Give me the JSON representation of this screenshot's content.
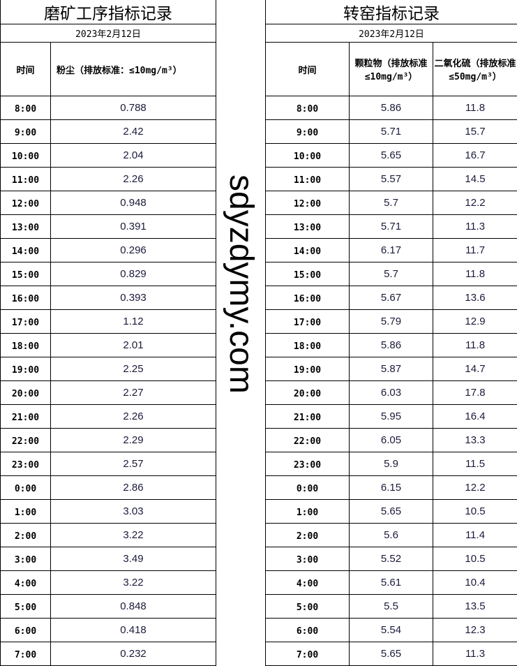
{
  "left": {
    "title": "磨矿工序指标记录",
    "date": "2023年2月12日",
    "col_time": "时间",
    "col_dust": "粉尘（排放标准：≤10mg/m³）",
    "rows": [
      [
        "8:00",
        "0.788"
      ],
      [
        "9:00",
        "2.42"
      ],
      [
        "10:00",
        "2.04"
      ],
      [
        "11:00",
        "2.26"
      ],
      [
        "12:00",
        "0.948"
      ],
      [
        "13:00",
        "0.391"
      ],
      [
        "14:00",
        "0.296"
      ],
      [
        "15:00",
        "0.829"
      ],
      [
        "16:00",
        "0.393"
      ],
      [
        "17:00",
        "1.12"
      ],
      [
        "18:00",
        "2.01"
      ],
      [
        "19:00",
        "2.25"
      ],
      [
        "20:00",
        "2.27"
      ],
      [
        "21:00",
        "2.26"
      ],
      [
        "22:00",
        "2.29"
      ],
      [
        "23:00",
        "2.57"
      ],
      [
        "0:00",
        "2.86"
      ],
      [
        "1:00",
        "3.03"
      ],
      [
        "2:00",
        "3.22"
      ],
      [
        "3:00",
        "3.49"
      ],
      [
        "4:00",
        "3.22"
      ],
      [
        "5:00",
        "0.848"
      ],
      [
        "6:00",
        "0.418"
      ],
      [
        "7:00",
        "0.232"
      ]
    ]
  },
  "right": {
    "title": "转窑指标记录",
    "date": "2023年2月12日",
    "col_time": "时间",
    "col_particles": "颗粒物（排放标准≤10mg/m³）",
    "col_so2": "二氧化硫（排放标准≤50mg/m³）",
    "rows": [
      [
        "8:00",
        "5.86",
        "11.8"
      ],
      [
        "9:00",
        "5.71",
        "15.7"
      ],
      [
        "10:00",
        "5.65",
        "16.7"
      ],
      [
        "11:00",
        "5.57",
        "14.5"
      ],
      [
        "12:00",
        "5.7",
        "12.2"
      ],
      [
        "13:00",
        "5.71",
        "11.3"
      ],
      [
        "14:00",
        "6.17",
        "11.7"
      ],
      [
        "15:00",
        "5.7",
        "11.8"
      ],
      [
        "16:00",
        "5.67",
        "13.6"
      ],
      [
        "17:00",
        "5.79",
        "12.9"
      ],
      [
        "18:00",
        "5.86",
        "11.8"
      ],
      [
        "19:00",
        "5.87",
        "14.7"
      ],
      [
        "20:00",
        "6.03",
        "17.8"
      ],
      [
        "21:00",
        "5.95",
        "16.4"
      ],
      [
        "22:00",
        "6.05",
        "13.3"
      ],
      [
        "23:00",
        "5.9",
        "11.5"
      ],
      [
        "0:00",
        "6.15",
        "12.2"
      ],
      [
        "1:00",
        "5.65",
        "10.5"
      ],
      [
        "2:00",
        "5.6",
        "11.4"
      ],
      [
        "3:00",
        "5.52",
        "10.5"
      ],
      [
        "4:00",
        "5.61",
        "10.4"
      ],
      [
        "5:00",
        "5.5",
        "13.5"
      ],
      [
        "6:00",
        "5.54",
        "12.3"
      ],
      [
        "7:00",
        "5.65",
        "11.3"
      ]
    ]
  },
  "watermark": "sdyzdymy.com"
}
